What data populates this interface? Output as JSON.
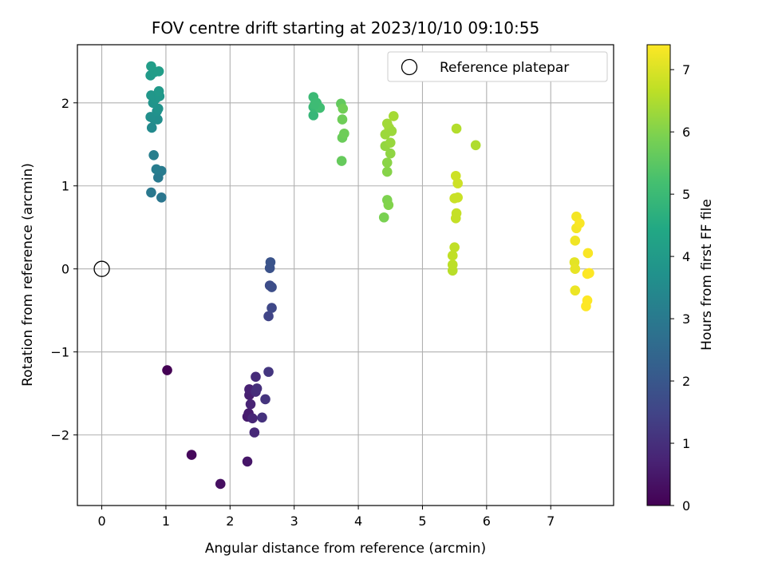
{
  "chart_data": {
    "type": "scatter",
    "title": "FOV centre drift starting at 2023/10/10 09:10:55",
    "xlabel": "Angular distance from reference (arcmin)",
    "ylabel": "Rotation from reference (arcmin)",
    "xlim": [
      -0.38,
      7.98
    ],
    "ylim": [
      -2.85,
      2.7
    ],
    "xticks": [
      "0",
      "1",
      "2",
      "3",
      "4",
      "5",
      "6",
      "7"
    ],
    "yticks": [
      "−2",
      "−1",
      "0",
      "1",
      "2"
    ],
    "grid": true,
    "legend": {
      "position": "top-right",
      "entries": [
        "Reference platepar"
      ]
    },
    "reference_point": {
      "x": 0,
      "y": 0
    },
    "colorbar": {
      "label": "Hours from first FF file",
      "range": [
        0,
        7.4
      ],
      "ticks": [
        "0",
        "1",
        "2",
        "3",
        "4",
        "5",
        "6",
        "7"
      ],
      "colormap": "viridis"
    },
    "series": [
      {
        "points": [
          [
            1.02,
            -1.22,
            0.0
          ],
          [
            1.4,
            -2.24,
            0.15
          ],
          [
            1.85,
            -2.59,
            0.3
          ],
          [
            2.27,
            -2.32,
            0.45
          ],
          [
            2.27,
            -1.78,
            0.55
          ],
          [
            2.29,
            -1.74,
            0.6
          ],
          [
            2.3,
            -1.52,
            0.65
          ],
          [
            2.3,
            -1.45,
            0.7
          ],
          [
            2.32,
            -1.63,
            0.75
          ],
          [
            2.35,
            -1.8,
            0.8
          ],
          [
            2.38,
            -1.97,
            0.85
          ],
          [
            2.4,
            -1.3,
            0.9
          ],
          [
            2.4,
            -1.48,
            0.95
          ],
          [
            2.42,
            -1.44,
            1.0
          ],
          [
            2.5,
            -1.79,
            1.05
          ],
          [
            2.55,
            -1.57,
            1.1
          ],
          [
            2.6,
            -1.24,
            1.15
          ]
        ]
      },
      {
        "points": [
          [
            2.6,
            -0.57,
            1.5
          ],
          [
            2.65,
            -0.47,
            1.6
          ],
          [
            2.62,
            -0.2,
            1.7
          ],
          [
            2.65,
            -0.22,
            1.75
          ],
          [
            2.62,
            0.01,
            1.85
          ],
          [
            2.63,
            0.08,
            1.9
          ]
        ]
      },
      {
        "points": [
          [
            0.93,
            0.86,
            2.9
          ],
          [
            0.77,
            0.92,
            2.95
          ],
          [
            0.88,
            1.1,
            3.0
          ],
          [
            0.93,
            1.18,
            3.05
          ],
          [
            0.85,
            1.2,
            3.1
          ],
          [
            0.81,
            1.37,
            3.15
          ],
          [
            0.78,
            1.7,
            3.5
          ],
          [
            0.82,
            1.8,
            3.55
          ],
          [
            0.87,
            1.8,
            3.6
          ],
          [
            0.76,
            1.83,
            3.65
          ],
          [
            0.86,
            1.9,
            3.7
          ],
          [
            0.88,
            1.93,
            3.75
          ],
          [
            0.8,
            2.0,
            3.8
          ],
          [
            0.84,
            2.05,
            3.85
          ],
          [
            0.77,
            2.09,
            3.9
          ],
          [
            0.9,
            2.08,
            3.9
          ],
          [
            0.89,
            2.14,
            3.95
          ],
          [
            0.76,
            2.33,
            4.0
          ],
          [
            0.82,
            2.37,
            4.05
          ],
          [
            0.89,
            2.38,
            4.1
          ],
          [
            0.77,
            2.44,
            4.1
          ]
        ]
      },
      {
        "points": [
          [
            3.3,
            1.85,
            4.9
          ],
          [
            3.3,
            1.95,
            4.95
          ],
          [
            3.3,
            2.07,
            5.0
          ],
          [
            3.35,
            2.0,
            5.05
          ],
          [
            3.4,
            1.94,
            5.1
          ],
          [
            3.32,
            1.98,
            5.05
          ],
          [
            3.73,
            1.99,
            5.6
          ],
          [
            3.74,
            1.3,
            5.65
          ],
          [
            3.75,
            1.58,
            5.7
          ],
          [
            3.75,
            1.8,
            5.75
          ],
          [
            3.78,
            1.63,
            5.75
          ],
          [
            3.76,
            1.93,
            5.8
          ]
        ]
      },
      {
        "points": [
          [
            4.4,
            0.62,
            5.9
          ],
          [
            4.45,
            0.83,
            5.95
          ],
          [
            4.47,
            0.77,
            6.0
          ],
          [
            4.45,
            1.17,
            6.05
          ],
          [
            4.45,
            1.28,
            6.1
          ],
          [
            4.5,
            1.39,
            6.15
          ],
          [
            4.42,
            1.48,
            6.2
          ],
          [
            4.5,
            1.52,
            6.25
          ],
          [
            4.42,
            1.62,
            6.3
          ],
          [
            4.48,
            1.7,
            6.35
          ],
          [
            4.52,
            1.66,
            6.3
          ],
          [
            4.55,
            1.84,
            6.4
          ],
          [
            4.45,
            1.75,
            6.35
          ]
        ]
      },
      {
        "points": [
          [
            5.47,
            -0.02,
            6.6
          ],
          [
            5.47,
            0.05,
            6.65
          ],
          [
            5.47,
            0.16,
            6.7
          ],
          [
            5.5,
            0.26,
            6.7
          ],
          [
            5.52,
            0.61,
            6.75
          ],
          [
            5.53,
            0.67,
            6.75
          ],
          [
            5.5,
            0.85,
            6.8
          ],
          [
            5.55,
            0.86,
            6.8
          ],
          [
            5.55,
            1.03,
            6.85
          ],
          [
            5.52,
            1.12,
            6.85
          ],
          [
            5.53,
            1.69,
            6.55
          ],
          [
            5.83,
            1.49,
            6.5
          ]
        ]
      },
      {
        "points": [
          [
            7.37,
            0.08,
            7.1
          ],
          [
            7.38,
            0.0,
            7.15
          ],
          [
            7.38,
            -0.26,
            7.2
          ],
          [
            7.38,
            0.34,
            7.25
          ],
          [
            7.4,
            0.49,
            7.3
          ],
          [
            7.4,
            0.63,
            7.3
          ],
          [
            7.45,
            0.55,
            7.35
          ],
          [
            7.58,
            0.19,
            7.35
          ],
          [
            7.57,
            -0.06,
            7.4
          ],
          [
            7.6,
            -0.05,
            7.4
          ],
          [
            7.57,
            -0.38,
            7.4
          ],
          [
            7.55,
            -0.45,
            7.4
          ]
        ]
      }
    ]
  }
}
